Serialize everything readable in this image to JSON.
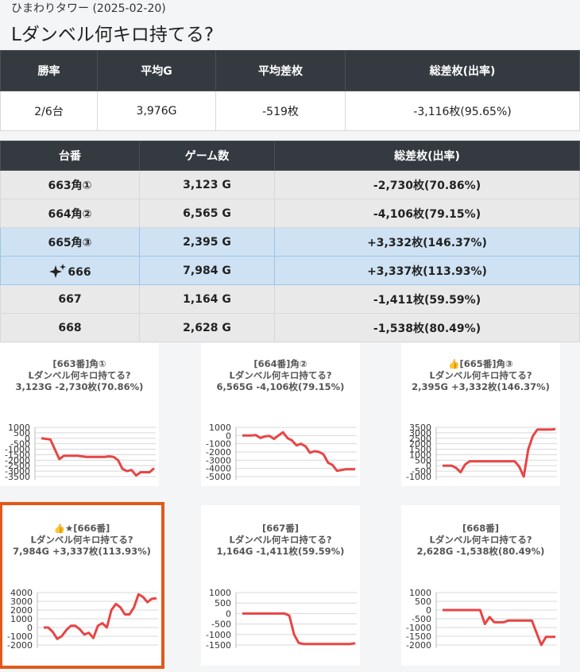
{
  "header": {
    "subtitle": "ひまわりタワー (2025-02-20)",
    "title": "Lダンベル何キロ持てる?"
  },
  "summary": {
    "headers": [
      "勝率",
      "平均G",
      "平均差枚",
      "総差枚(出率)"
    ],
    "row": [
      "2/6台",
      "3,976G",
      "-519枚",
      "-3,116枚(95.65%)"
    ]
  },
  "machines": {
    "headers": [
      "台番",
      "ゲーム数",
      "総差枚(出率)"
    ],
    "rows": [
      {
        "cells": [
          "663角①",
          "3,123 G",
          "-2,730枚(70.86%)"
        ],
        "highlight": false,
        "sparkle": false
      },
      {
        "cells": [
          "664角②",
          "6,565 G",
          "-4,106枚(79.15%)"
        ],
        "highlight": false,
        "sparkle": false
      },
      {
        "cells": [
          "665角③",
          "2,395 G",
          "+3,332枚(146.37%)"
        ],
        "highlight": true,
        "sparkle": false
      },
      {
        "cells": [
          "666",
          "7,984 G",
          "+3,337枚(113.93%)"
        ],
        "highlight": true,
        "sparkle": true
      },
      {
        "cells": [
          "667",
          "1,164 G",
          "-1,411枚(59.59%)"
        ],
        "highlight": false,
        "sparkle": false
      },
      {
        "cells": [
          "668",
          "2,628 G",
          "-1,538枚(80.49%)"
        ],
        "highlight": false,
        "sparkle": false
      }
    ]
  },
  "charts": [
    {
      "type": "line",
      "title_lines": [
        "[663番]角①",
        "Lダンベル何キロ持てる?",
        "3,123G -2,730枚(70.86%)"
      ],
      "color": "#e84545",
      "selected": false,
      "ylim": [
        -3500,
        1000
      ],
      "yticks": [
        1000,
        500,
        0,
        -500,
        -1000,
        -1500,
        -2000,
        -2500,
        -3000,
        -3500
      ],
      "values": [
        0,
        -50,
        -100,
        -1000,
        -1900,
        -1600,
        -1600,
        -1600,
        -1600,
        -1650,
        -1700,
        -1700,
        -1700,
        -1700,
        -1700,
        -1650,
        -1700,
        -2000,
        -2800,
        -3000,
        -2900,
        -3400,
        -3100,
        -3100,
        -3100,
        -2730
      ]
    },
    {
      "type": "line",
      "title_lines": [
        "[664番]角②",
        "Lダンベル何キロ持てる?",
        "6,565G -4,106枚(79.15%)"
      ],
      "color": "#e84545",
      "selected": false,
      "ylim": [
        -5000,
        1000
      ],
      "yticks": [
        1000,
        0,
        -1000,
        -2000,
        -3000,
        -4000,
        -5000
      ],
      "values": [
        0,
        0,
        0,
        50,
        -300,
        -100,
        -50,
        -400,
        0,
        400,
        -300,
        -600,
        -1200,
        -1000,
        -1300,
        -2100,
        -1900,
        -2000,
        -2300,
        -3300,
        -3600,
        -4300,
        -4200,
        -4100,
        -4100,
        -4106
      ]
    },
    {
      "type": "line",
      "title_lines": [
        "👍[665番]角③",
        "Lダンベル何キロ持てる?",
        "2,395G +3,332枚(146.37%)"
      ],
      "color": "#e84545",
      "selected": false,
      "ylim": [
        -1000,
        3500
      ],
      "yticks": [
        3500,
        3000,
        2500,
        2000,
        1500,
        1000,
        500,
        0,
        -500,
        -1000
      ],
      "values": [
        0,
        0,
        0,
        -200,
        -600,
        100,
        400,
        400,
        400,
        400,
        400,
        400,
        400,
        400,
        400,
        400,
        400,
        -100,
        -1000,
        1500,
        2700,
        3300,
        3300,
        3300,
        3300,
        3332
      ]
    },
    {
      "type": "line",
      "title_lines": [
        "👍★[666番]",
        "Lダンベル何キロ持てる?",
        "7,984G +3,337枚(113.93%)"
      ],
      "color": "#e84545",
      "selected": true,
      "ylim": [
        -2000,
        4000
      ],
      "yticks": [
        4000,
        3000,
        2000,
        1000,
        0,
        -1000,
        -2000
      ],
      "values": [
        0,
        0,
        -500,
        -1300,
        -1000,
        -300,
        200,
        200,
        -200,
        -800,
        -600,
        -1200,
        200,
        500,
        0,
        2000,
        2700,
        2300,
        1500,
        1500,
        2300,
        3800,
        3500,
        2900,
        3300,
        3337
      ]
    },
    {
      "type": "line",
      "title_lines": [
        "[667番]",
        "Lダンベル何キロ持てる?",
        "1,164G -1,411枚(59.59%)"
      ],
      "color": "#e84545",
      "selected": false,
      "ylim": [
        -1500,
        1000
      ],
      "yticks": [
        1000,
        500,
        0,
        -500,
        -1000,
        -1500
      ],
      "values": [
        0,
        0,
        0,
        0,
        0,
        0,
        0,
        0,
        0,
        0,
        -100,
        -1000,
        -1400,
        -1450,
        -1450,
        -1450,
        -1450,
        -1450,
        -1450,
        -1450,
        -1450,
        -1450,
        -1450,
        -1450,
        -1411
      ]
    },
    {
      "type": "line",
      "title_lines": [
        "[668番]",
        "Lダンベル何キロ持てる?",
        "2,628G -1,538枚(80.49%)"
      ],
      "color": "#e84545",
      "selected": false,
      "ylim": [
        -2000,
        1000
      ],
      "yticks": [
        1000,
        500,
        0,
        -500,
        -1000,
        -1500,
        -2000
      ],
      "values": [
        0,
        0,
        0,
        0,
        0,
        0,
        0,
        0,
        0,
        -800,
        -400,
        -700,
        -700,
        -700,
        -600,
        -600,
        -600,
        -600,
        -600,
        -600,
        -1300,
        -2000,
        -1538,
        -1538,
        -1538
      ]
    }
  ]
}
